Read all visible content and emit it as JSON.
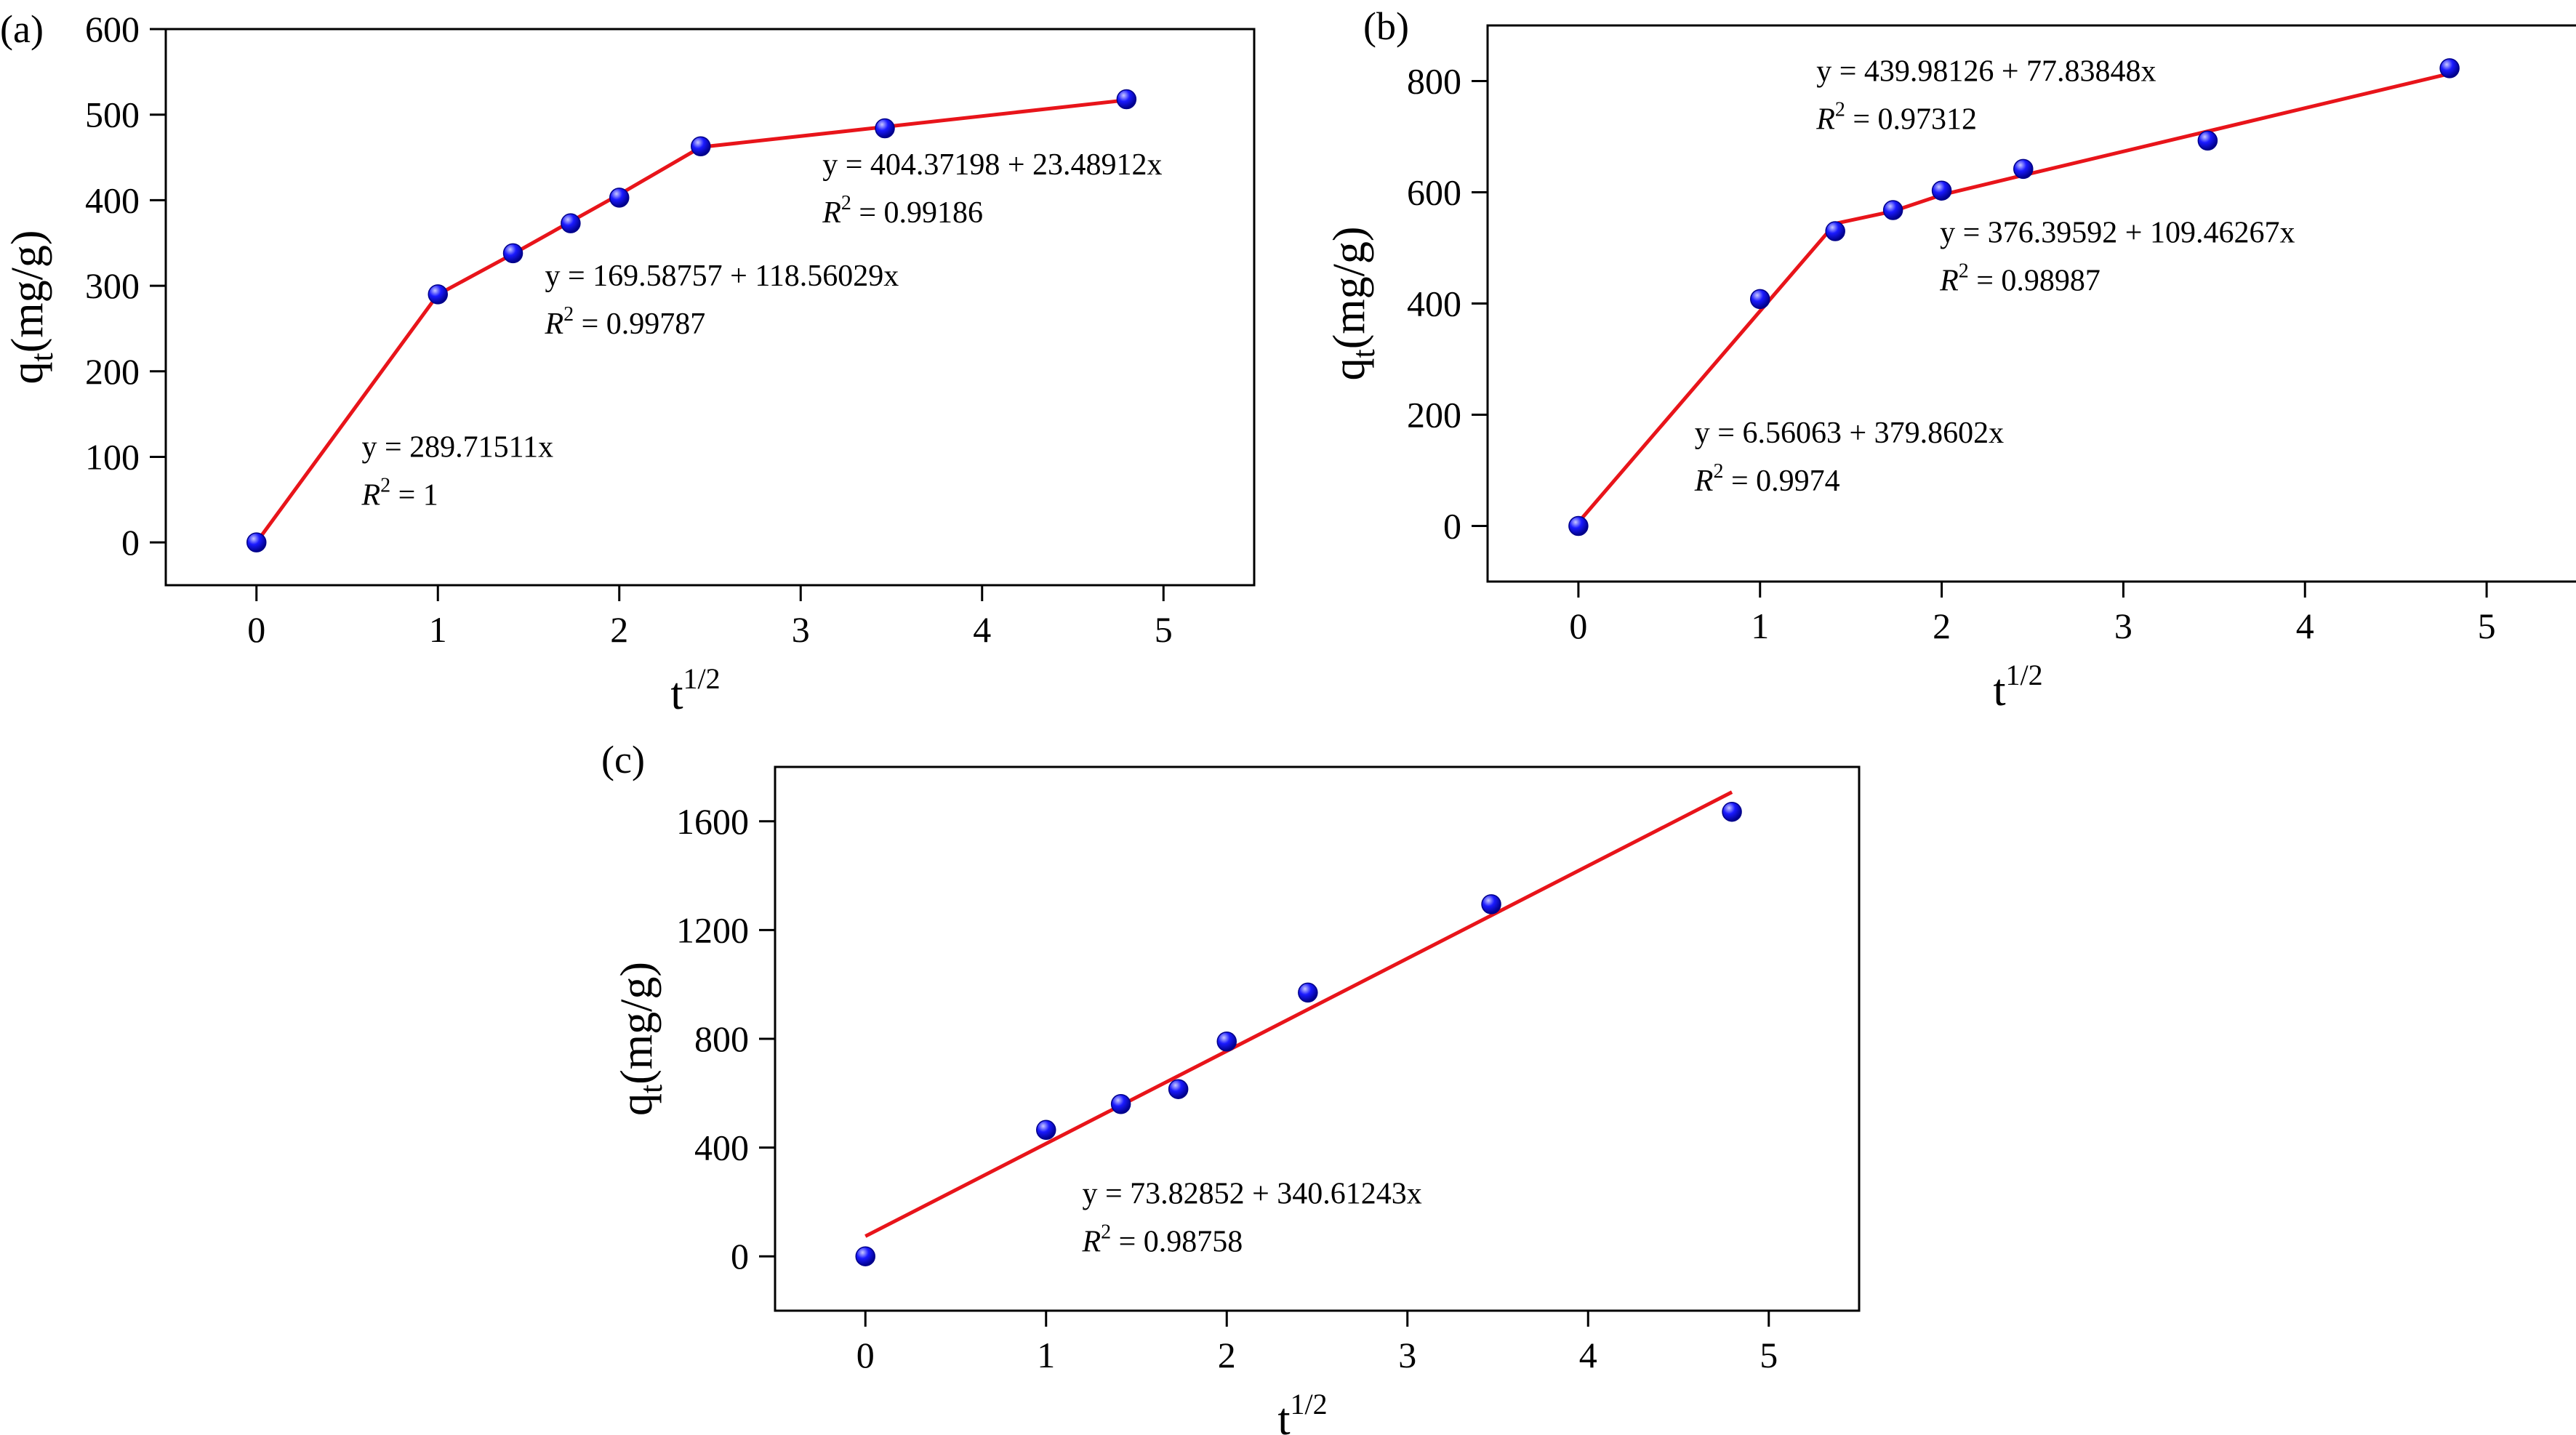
{
  "figure": {
    "sup_text": "1/2",
    "sub_text": "t",
    "r2_sup": "2"
  },
  "colors": {
    "fit_line": "#e8141a",
    "point_fill": "#1a1aff",
    "point_dark": "#00008a",
    "axis": "#000000"
  },
  "chart_data": [
    {
      "type": "scatter",
      "panel_label": "(a)",
      "xlabel_base": "t",
      "xlabel_sup": "1/2",
      "ylabel_base": "q",
      "ylabel_sub": "t",
      "ylabel_rest": "(mg/g)",
      "xlim": [
        -0.5,
        5.5
      ],
      "ylim": [
        -50,
        600
      ],
      "xticks": [
        0,
        1,
        2,
        3,
        4,
        5
      ],
      "xtick_labels": [
        "0",
        "1",
        "2",
        "3",
        "4",
        "5"
      ],
      "yticks": [
        0,
        100,
        200,
        300,
        400,
        500,
        600
      ],
      "ytick_labels": [
        "0",
        "100",
        "200",
        "300",
        "400",
        "500",
        "600"
      ],
      "points": {
        "x": [
          0,
          1,
          1.414,
          1.732,
          2,
          2.449,
          3.464,
          4.796
        ],
        "y": [
          0,
          290,
          338,
          373,
          403,
          463,
          484,
          518
        ]
      },
      "fit_line": {
        "x": [
          0,
          1,
          1.414,
          1.732,
          2,
          2.449,
          3.464,
          4.796
        ],
        "y": [
          0,
          289.7,
          337.2,
          375.0,
          406.7,
          462.0,
          485.7,
          517.0
        ]
      },
      "annotations": [
        {
          "eq": "y = 289.71511x",
          "r2_label": "R",
          "r2_value": " = 1",
          "at": [
            0.58,
            100
          ]
        },
        {
          "eq": "y = 169.58757 + 118.56029x",
          "r2_label": "R",
          "r2_value": " = 0.99787",
          "at": [
            1.59,
            300
          ]
        },
        {
          "eq": "y = 404.37198 + 23.48912x",
          "r2_label": "R",
          "r2_value": " = 0.99186",
          "at": [
            3.12,
            430
          ]
        }
      ]
    },
    {
      "type": "scatter",
      "panel_label": "(b)",
      "xlabel_base": "t",
      "xlabel_sup": "1/2",
      "ylabel_base": "q",
      "ylabel_sub": "t",
      "ylabel_rest": "(mg/g)",
      "xlim": [
        -0.5,
        5.5
      ],
      "ylim": [
        -100,
        900
      ],
      "xticks": [
        0,
        1,
        2,
        3,
        4,
        5
      ],
      "xtick_labels": [
        "0",
        "1",
        "2",
        "3",
        "4",
        "5"
      ],
      "yticks": [
        0,
        200,
        400,
        600,
        800
      ],
      "ytick_labels": [
        "0",
        "200",
        "400",
        "600",
        "800"
      ],
      "points": {
        "x": [
          0,
          1,
          1.414,
          1.732,
          2,
          2.449,
          3.464,
          4.796
        ],
        "y": [
          0,
          408,
          530,
          568,
          603,
          642,
          693,
          823
        ]
      },
      "fit_line": {
        "x": [
          0,
          1.414,
          1.732,
          2,
          2.449,
          4.796
        ],
        "y": [
          6.56,
          543.7,
          566.0,
          595.3,
          630.6,
          813.3
        ]
      },
      "annotations": [
        {
          "eq": "y = 6.56063 + 379.8602x",
          "r2_label": "R",
          "r2_value": " = 0.9974",
          "at": [
            0.64,
            150
          ]
        },
        {
          "eq": "y = 376.39592 + 109.46267x",
          "r2_label": "R",
          "r2_value": " = 0.98987",
          "at": [
            1.99,
            510
          ]
        },
        {
          "eq": "y = 439.98126 + 77.83848x",
          "r2_label": "R",
          "r2_value": " = 0.97312",
          "at": [
            1.31,
            800
          ]
        }
      ]
    },
    {
      "type": "scatter",
      "panel_label": "(c)",
      "xlabel_base": "t",
      "xlabel_sup": "1/2",
      "ylabel_base": "q",
      "ylabel_sub": "t",
      "ylabel_rest": "(mg/g)",
      "xlim": [
        -0.5,
        5.5
      ],
      "ylim": [
        -200,
        1800
      ],
      "xticks": [
        0,
        1,
        2,
        3,
        4,
        5
      ],
      "xtick_labels": [
        "0",
        "1",
        "2",
        "3",
        "4",
        "5"
      ],
      "yticks": [
        0,
        400,
        800,
        1200,
        1600
      ],
      "ytick_labels": [
        "0",
        "400",
        "800",
        "1200",
        "1600"
      ],
      "points": {
        "x": [
          0,
          1,
          1.414,
          1.732,
          2,
          2.449,
          3.464,
          4.796
        ],
        "y": [
          0,
          465,
          560,
          615,
          790,
          970,
          1295,
          1635
        ]
      },
      "fit_line": {
        "x": [
          0,
          4.796
        ],
        "y": [
          73.83,
          1707.4
        ]
      },
      "annotations": [
        {
          "eq": "y = 73.82852 + 340.61243x",
          "r2_label": "R",
          "r2_value": " = 0.98758",
          "at": [
            1.2,
            195
          ]
        }
      ]
    }
  ]
}
